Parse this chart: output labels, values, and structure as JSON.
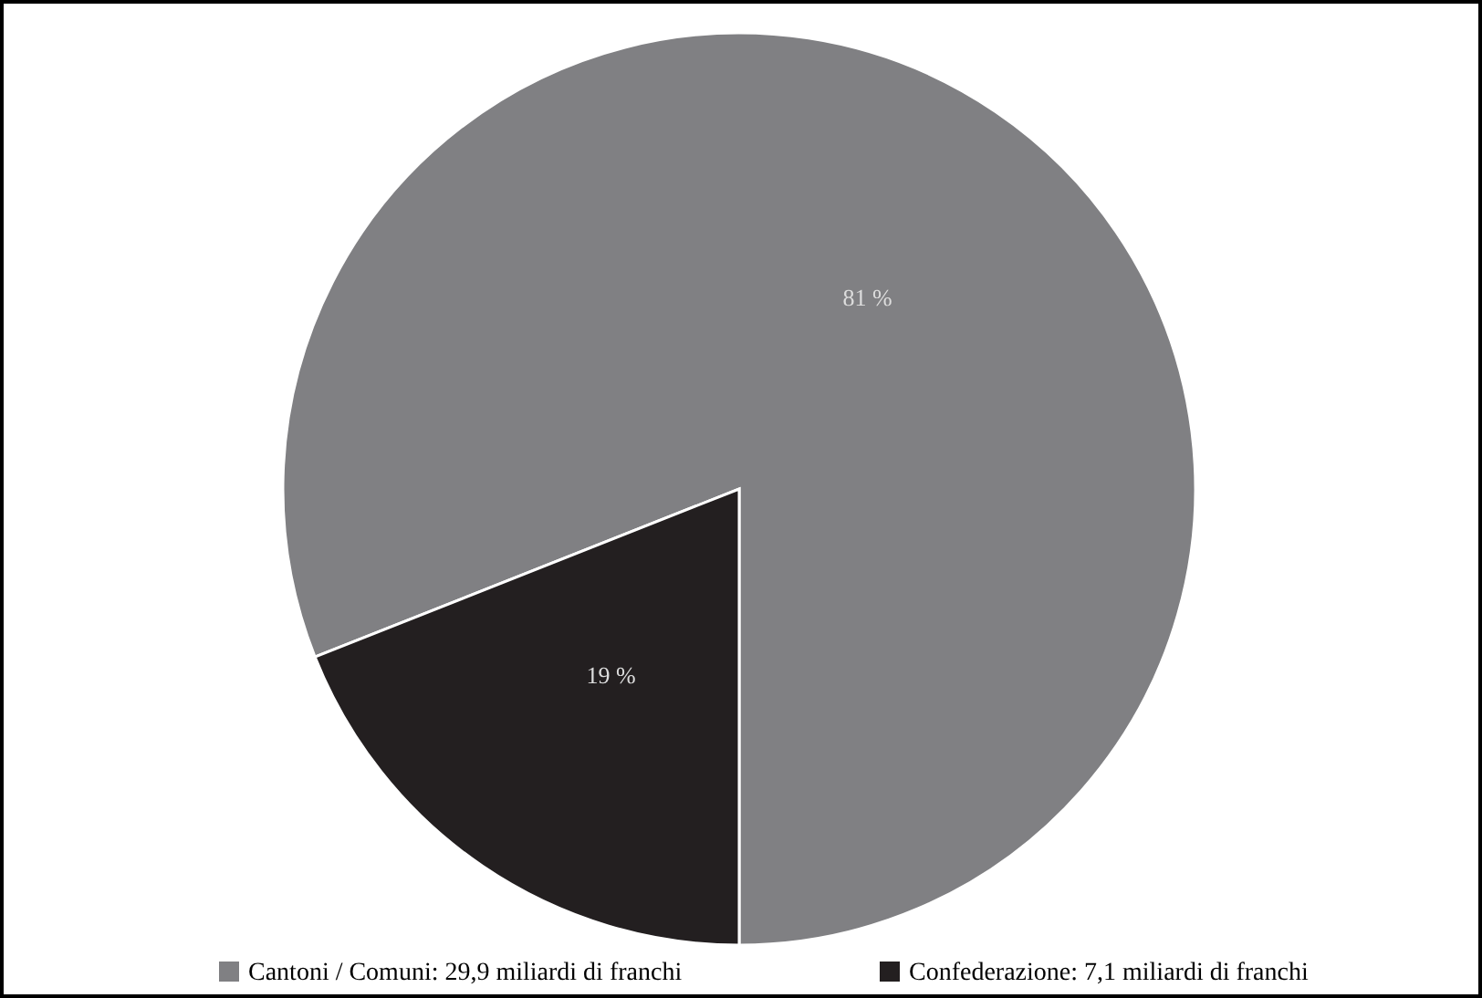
{
  "chart_data": {
    "type": "pie",
    "categories": [
      "Cantoni / Comuni: 29,9 miliardi di franchi",
      "Confederazione: 7,1 miliardi di franchi"
    ],
    "values": [
      81,
      19
    ],
    "colors": [
      "#808083",
      "#231f20"
    ],
    "value_labels": [
      "81 %",
      "19 %"
    ],
    "legend": "bottom"
  }
}
